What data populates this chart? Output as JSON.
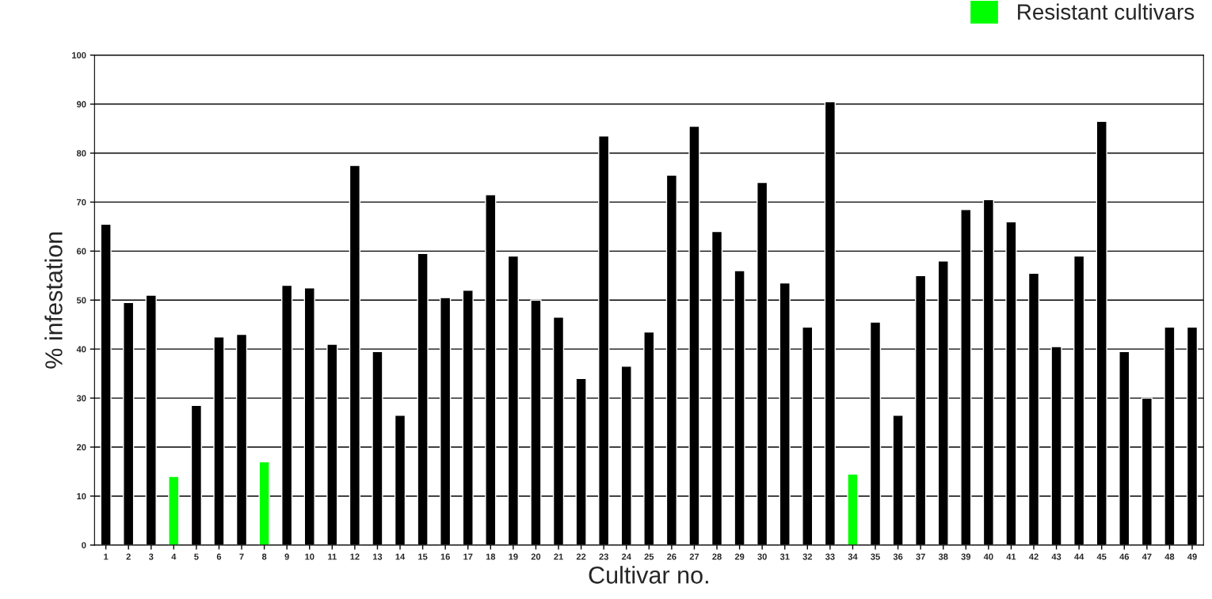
{
  "chart_data": {
    "type": "bar",
    "xlabel": "Cultivar no.",
    "ylabel": "% infestation",
    "categories": [
      "1",
      "2",
      "3",
      "4",
      "5",
      "6",
      "7",
      "8",
      "9",
      "10",
      "11",
      "12",
      "13",
      "14",
      "15",
      "16",
      "17",
      "18",
      "19",
      "20",
      "21",
      "22",
      "23",
      "24",
      "25",
      "26",
      "27",
      "28",
      "29",
      "30",
      "31",
      "32",
      "33",
      "34",
      "35",
      "36",
      "37",
      "38",
      "39",
      "40",
      "41",
      "42",
      "43",
      "44",
      "45",
      "46",
      "47",
      "48",
      "49"
    ],
    "series": [
      {
        "color": "#000000",
        "values": [
          65.5,
          49.5,
          51,
          null,
          28.5,
          42.5,
          43,
          null,
          53,
          52.5,
          41,
          77.5,
          39.5,
          26.5,
          59.5,
          50.5,
          52,
          71.5,
          59,
          50,
          46.5,
          34,
          83.5,
          36.5,
          43.5,
          75.5,
          85.5,
          64,
          56,
          74,
          53.5,
          44.5,
          90.5,
          null,
          45.5,
          26.5,
          55,
          58,
          68.5,
          70.5,
          66,
          55.5,
          40.5,
          59,
          86.5,
          39.5,
          30,
          44.5,
          44.5
        ]
      },
      {
        "name": "Resistant cultivars",
        "color": "#00ff00",
        "values": [
          null,
          null,
          null,
          14,
          null,
          null,
          null,
          17,
          null,
          null,
          null,
          null,
          null,
          null,
          null,
          null,
          null,
          null,
          null,
          null,
          null,
          null,
          null,
          null,
          null,
          null,
          null,
          null,
          null,
          null,
          null,
          null,
          null,
          14.5,
          null,
          null,
          null,
          null,
          null,
          null,
          null,
          null,
          null,
          null,
          null,
          null,
          null,
          null,
          null
        ]
      }
    ],
    "ylim": [
      0,
      100
    ],
    "yticks": [
      0,
      10,
      20,
      30,
      40,
      50,
      60,
      70,
      80,
      90,
      100
    ],
    "grid": "y",
    "legend": "top right"
  }
}
